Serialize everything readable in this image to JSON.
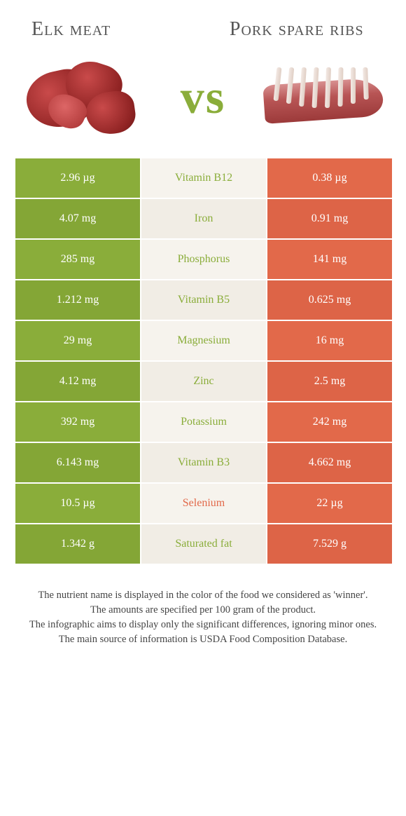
{
  "titles": {
    "left": "Elk meat",
    "right": "Pork spare ribs"
  },
  "vs": "vs",
  "colors": {
    "green": "#8aad3a",
    "green_alt": "#84a636",
    "orange": "#e2694a",
    "orange_alt": "#dd6447",
    "mid_bg": "#f6f3ed",
    "mid_bg_alt": "#f1ede5",
    "footer_text": "#444444"
  },
  "rows": [
    {
      "left": "2.96 µg",
      "mid": "Vitamin B12",
      "right": "0.38 µg",
      "winner": "left"
    },
    {
      "left": "4.07 mg",
      "mid": "Iron",
      "right": "0.91 mg",
      "winner": "left"
    },
    {
      "left": "285 mg",
      "mid": "Phosphorus",
      "right": "141 mg",
      "winner": "left"
    },
    {
      "left": "1.212 mg",
      "mid": "Vitamin B5",
      "right": "0.625 mg",
      "winner": "left"
    },
    {
      "left": "29 mg",
      "mid": "Magnesium",
      "right": "16 mg",
      "winner": "left"
    },
    {
      "left": "4.12 mg",
      "mid": "Zinc",
      "right": "2.5 mg",
      "winner": "left"
    },
    {
      "left": "392 mg",
      "mid": "Potassium",
      "right": "242 mg",
      "winner": "left"
    },
    {
      "left": "6.143 mg",
      "mid": "Vitamin B3",
      "right": "4.662 mg",
      "winner": "left"
    },
    {
      "left": "10.5 µg",
      "mid": "Selenium",
      "right": "22 µg",
      "winner": "right"
    },
    {
      "left": "1.342 g",
      "mid": "Saturated fat",
      "right": "7.529 g",
      "winner": "left"
    }
  ],
  "footer": [
    "The nutrient name is displayed in the color of the food we considered as 'winner'.",
    "The amounts are specified per 100 gram of the product.",
    "The infographic aims to display only the significant differences, ignoring minor ones.",
    "The main source of information is USDA Food Composition Database."
  ]
}
